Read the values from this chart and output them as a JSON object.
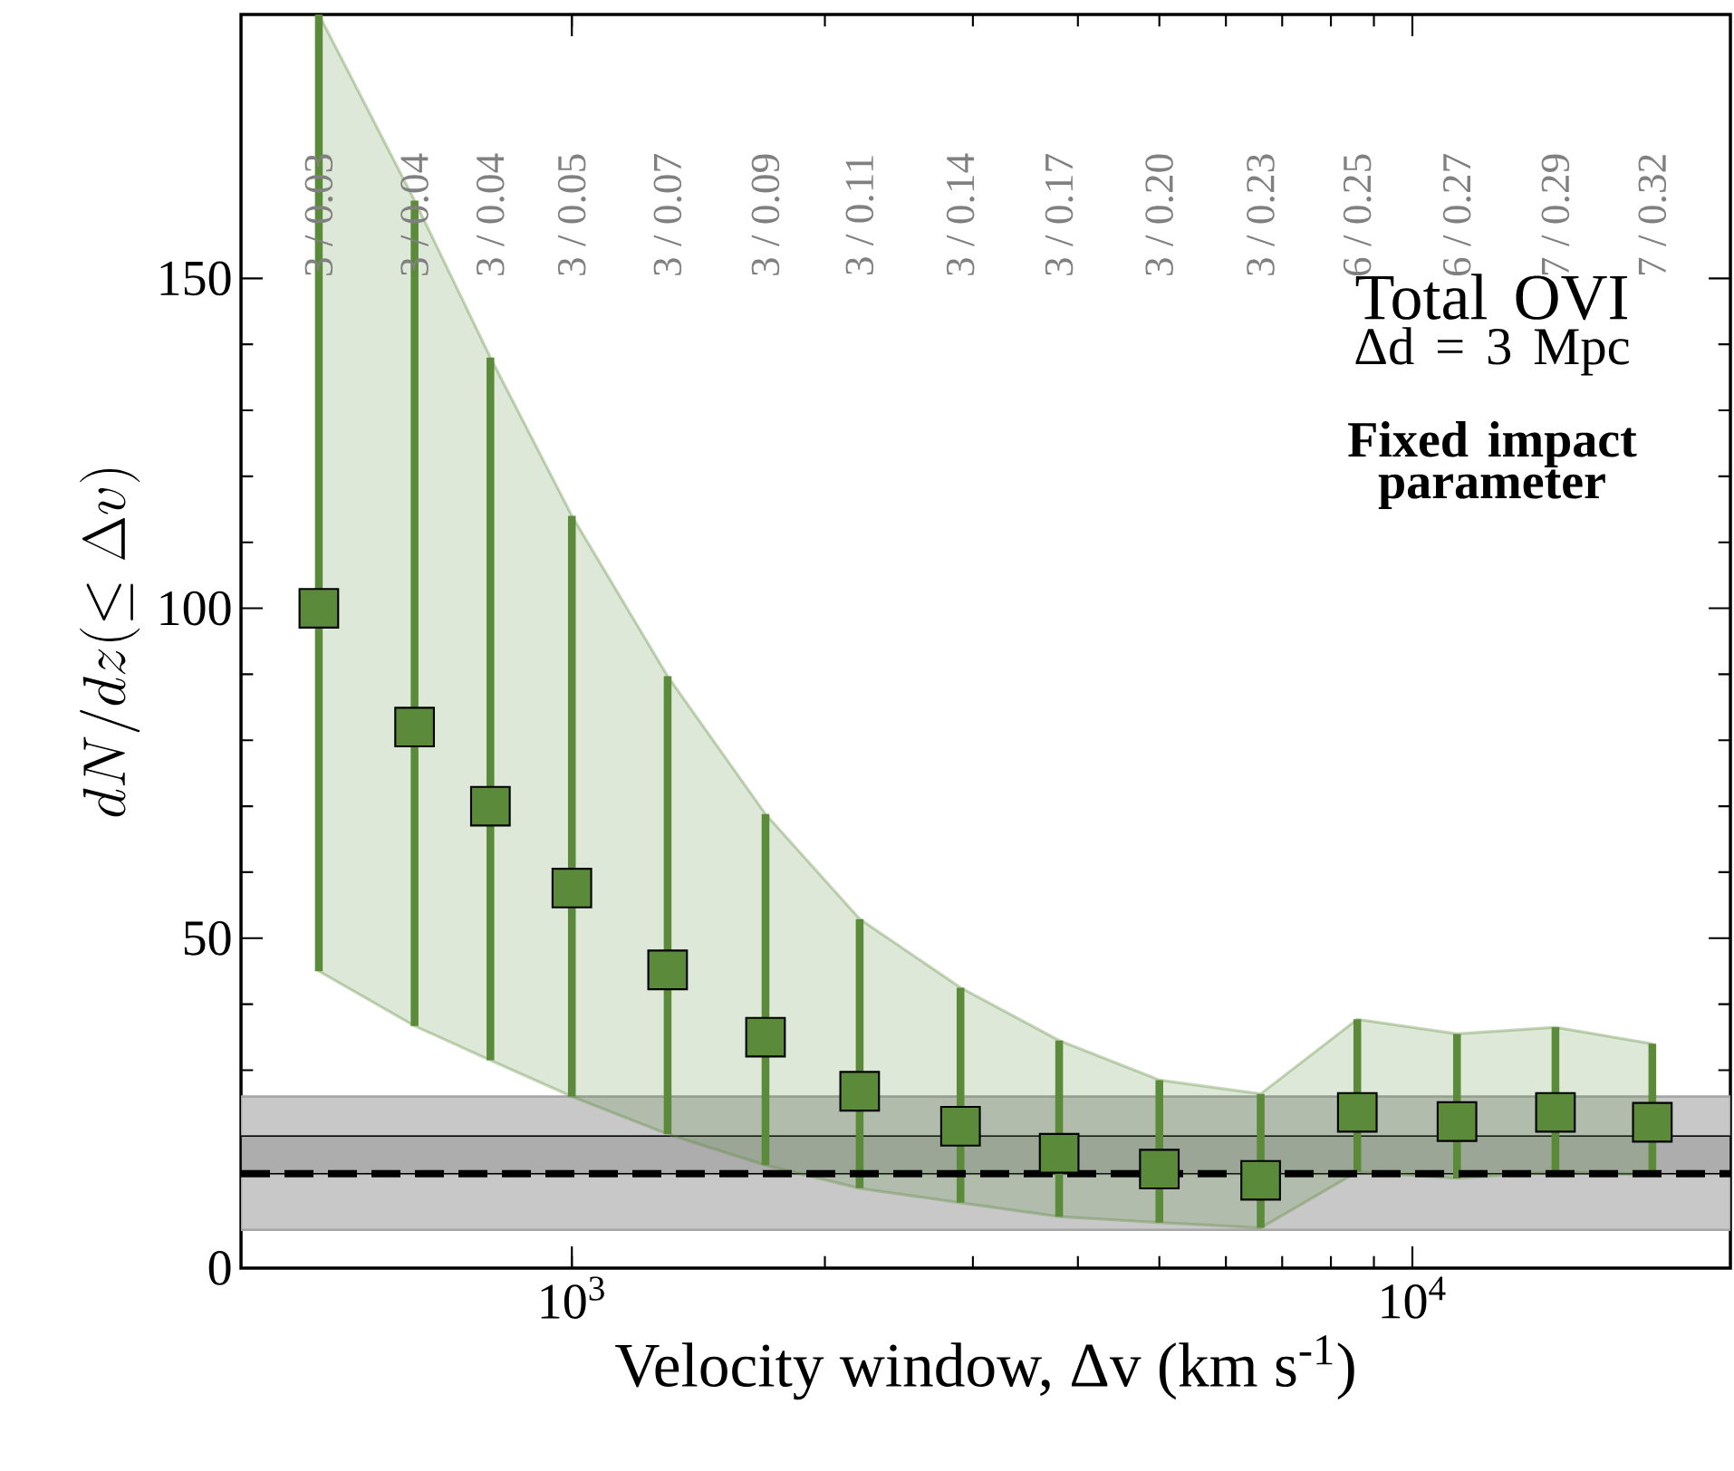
{
  "chart_data": {
    "type": "scatter",
    "xlabel": "Velocity window, Δv (km s$^{-1}$)",
    "ylabel": "dN/dz(\\le\\Delta v)",
    "x": [
      500,
      650,
      800,
      1000,
      1300,
      1700,
      2200,
      2900,
      3800,
      5000,
      6600,
      8600,
      11300,
      14800,
      19300
    ],
    "series": [
      {
        "color": "#5b8a3a",
        "marker": "square",
        "values": [
          100,
          82,
          70,
          57.6,
          45.2,
          35,
          26.8,
          21.5,
          17.4,
          15,
          13.3,
          23.6,
          22.2,
          23.6,
          22.1
        ],
        "errors": [
          [
            45,
            190
          ],
          [
            36.7,
            161.8
          ],
          [
            31.5,
            138
          ],
          [
            26,
            114
          ],
          [
            20.3,
            89.7
          ],
          [
            15.6,
            68.8
          ],
          [
            12.1,
            52.9
          ],
          [
            9.9,
            42.5
          ],
          [
            7.8,
            34.5
          ],
          [
            6.9,
            28.5
          ],
          [
            6.1,
            26.4
          ],
          [
            14.6,
            37.7
          ],
          [
            13.6,
            35.5
          ],
          [
            14.6,
            36.5
          ],
          [
            14.1,
            34
          ]
        ],
        "lower": [
          45,
          36.7,
          31.5,
          26,
          20.3,
          15.6,
          12.1,
          9.9,
          7.8,
          6.9,
          6.1,
          14.6,
          13.6,
          14.6,
          14.1
        ],
        "upper": [
          190,
          161.8,
          138,
          114,
          89.7,
          68.8,
          52.9,
          42.5,
          34.5,
          28.5,
          26.4,
          37.7,
          35.5,
          36.5,
          34
        ]
      }
    ],
    "log": "x",
    "xlim": [
      404,
      23900
    ],
    "ylim": [
      0,
      190
    ],
    "xticks": [
      {
        "value": 1000,
        "label": "10$^{3}$"
      },
      {
        "value": 10000,
        "label": "10$^{4}$"
      }
    ],
    "yticks": [
      0,
      50,
      100,
      150
    ],
    "grid": false,
    "bands": [
      {
        "axis": "y",
        "from": 5.8,
        "to": 26,
        "color": "#c8c8c8"
      },
      {
        "axis": "y",
        "from": 14.3,
        "to": 20,
        "color": "#adadad"
      }
    ],
    "ref_lines": [
      {
        "axis": "y",
        "value": 14.3,
        "color": "#000000",
        "line_style": "dashed"
      }
    ],
    "annotations": [
      "3 / 0.03",
      "3 / 0.04",
      "3 / 0.04",
      "3 / 0.05",
      "3 / 0.07",
      "3 / 0.09",
      "3 / 0.11",
      "3 / 0.14",
      "3 / 0.17",
      "3 / 0.20",
      "3 / 0.23",
      "6 / 0.25",
      "6 / 0.27",
      "7 / 0.29",
      "7 / 0.32",
      "Total OVI",
      "Δd = 3 Mpc",
      "**Fixed impact parameter**"
    ]
  }
}
